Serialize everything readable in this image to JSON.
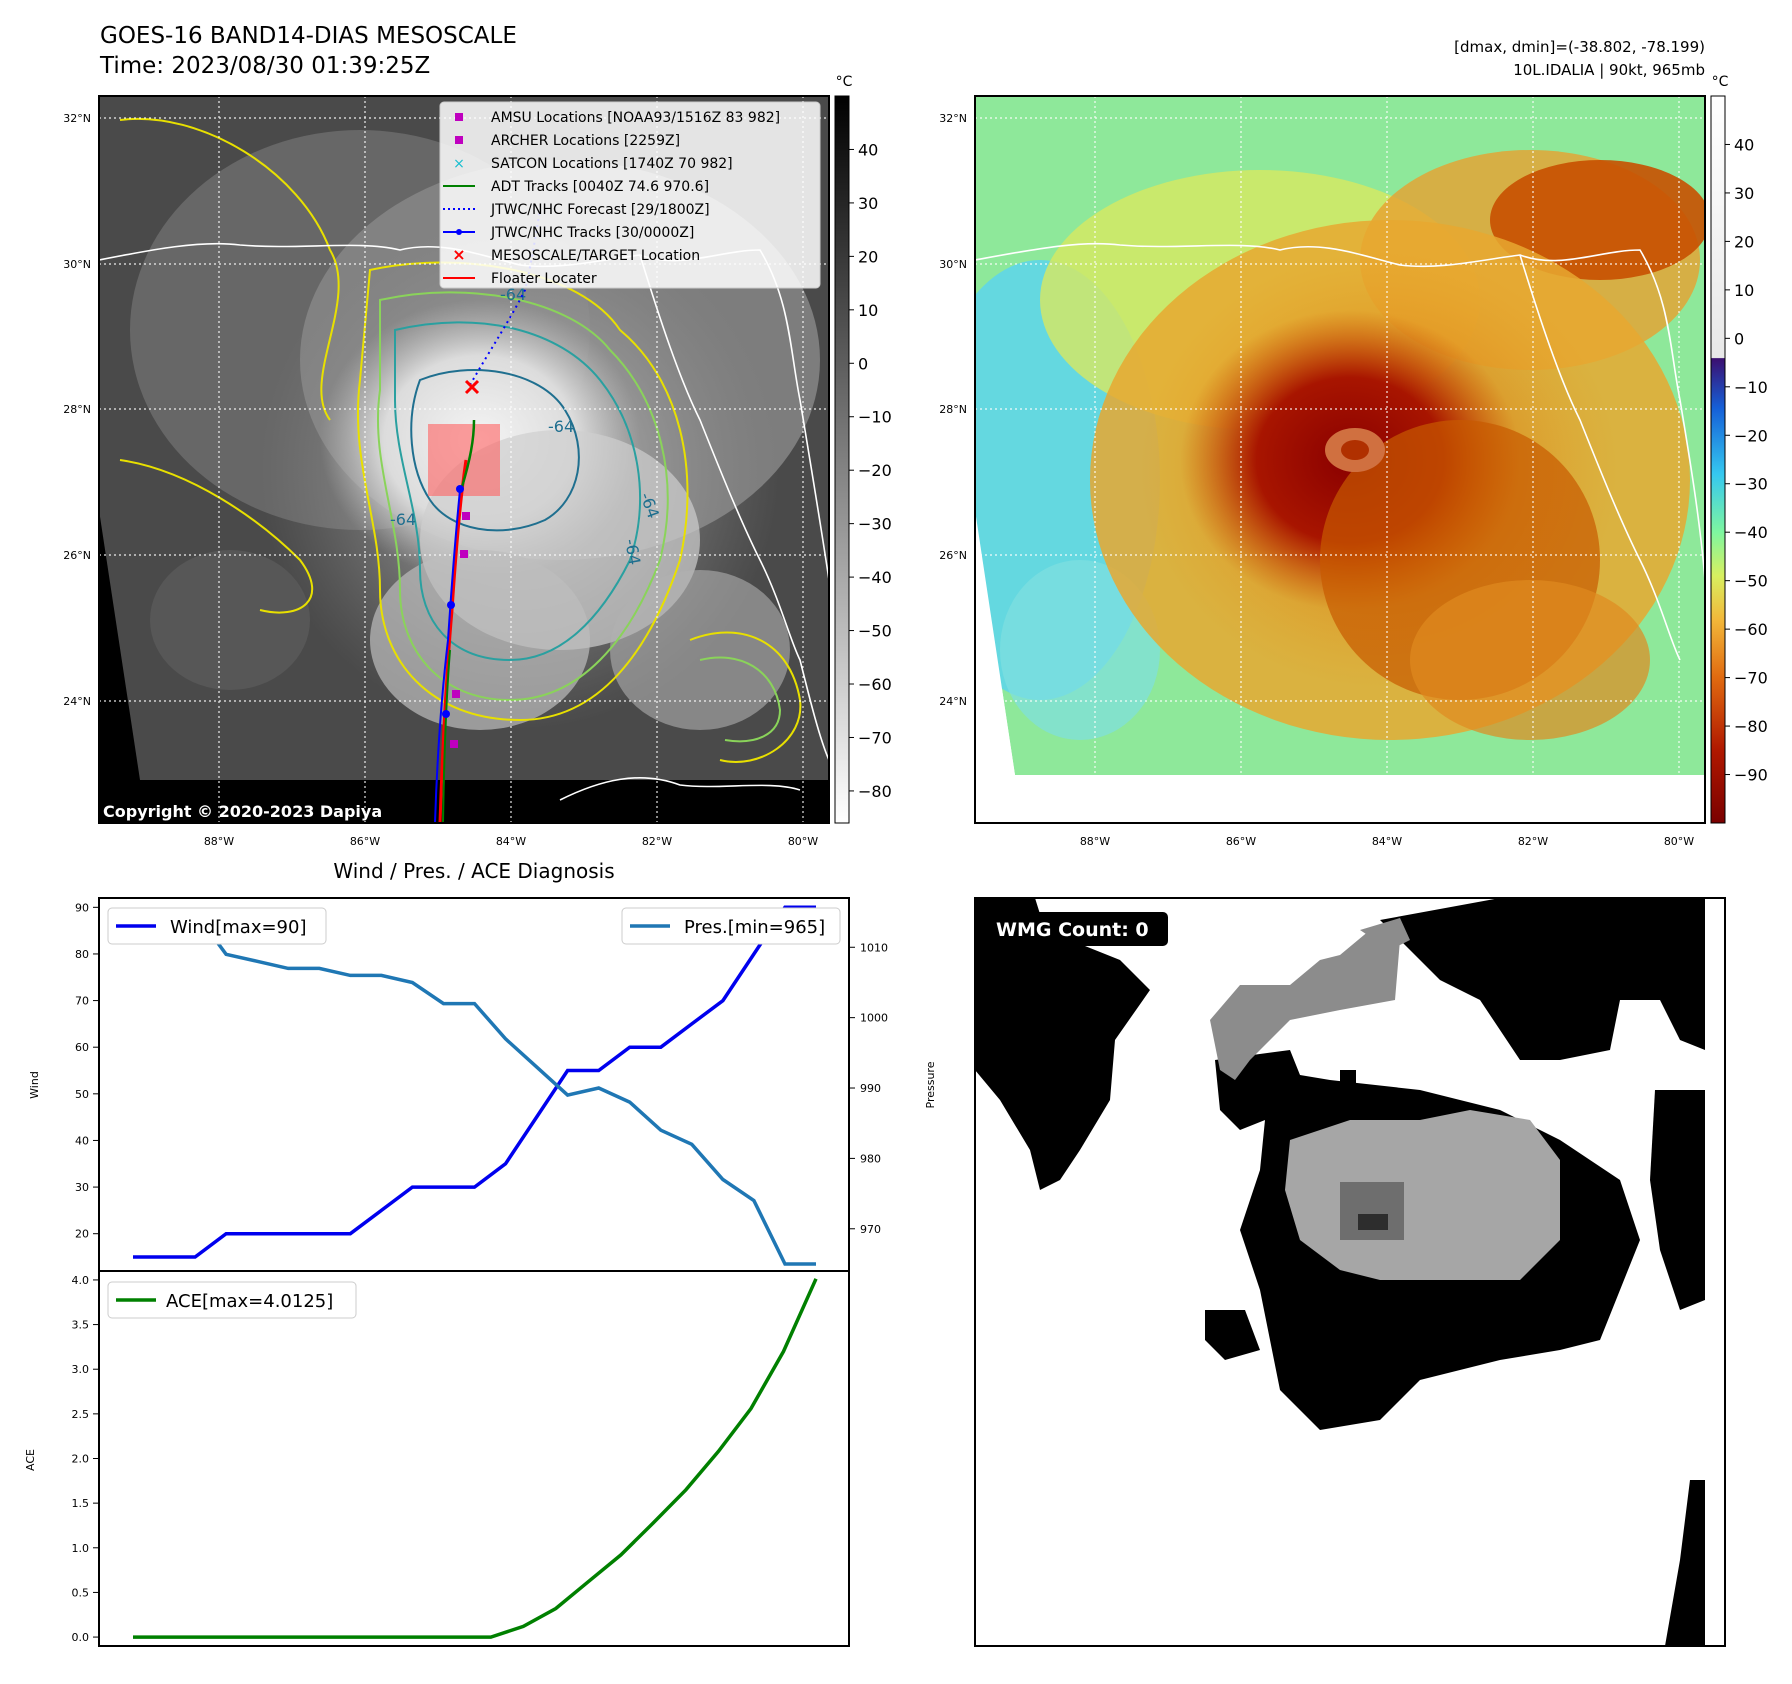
{
  "header": {
    "title": "GOES-16 BAND14-DIAS MESOSCALE",
    "time": "Time: 2023/08/30 01:39:25Z",
    "dmax_dmin": "[dmax, dmin]=(-38.802, -78.199)",
    "storm": "10L.IDALIA | 90kt, 965mb"
  },
  "copyright": "Copyright © 2020-2023 Dapiya",
  "colorbar_unit": "°C",
  "map": {
    "lat_ticks": [
      "32°N",
      "30°N",
      "28°N",
      "26°N",
      "24°N"
    ],
    "lon_ticks": [
      "88°W",
      "86°W",
      "84°W",
      "82°W",
      "80°W"
    ],
    "contour_labels": [
      "-64",
      "-64",
      "-64",
      "-64",
      "-64"
    ]
  },
  "colorbar_left": {
    "ticks": [
      "40",
      "30",
      "20",
      "10",
      "0",
      "−10",
      "−20",
      "−30",
      "−40",
      "−50",
      "−60",
      "−70",
      "−80"
    ]
  },
  "colorbar_right": {
    "ticks": [
      "40",
      "30",
      "20",
      "10",
      "0",
      "−10",
      "−20",
      "−30",
      "−40",
      "−50",
      "−60",
      "−70",
      "−80",
      "−90"
    ]
  },
  "legend": {
    "items": [
      {
        "label": "AMSU Locations [NOAA93/1516Z 83 982]",
        "color": "#bf00bf"
      },
      {
        "label": "ARCHER Locations [2259Z]",
        "color": "#bf00bf"
      },
      {
        "label": "SATCON Locations [1740Z 70 982]",
        "color": "#17becf"
      },
      {
        "label": "ADT Tracks [0040Z 74.6 970.6]",
        "color": "#008000"
      },
      {
        "label": "JTWC/NHC Forecast [29/1800Z]",
        "color": "#0000ff"
      },
      {
        "label": "JTWC/NHC Tracks [30/0000Z]",
        "color": "#0000ff"
      },
      {
        "label": "MESOSCALE/TARGET Location",
        "color": "#ff0000"
      },
      {
        "label": "Floater Locater",
        "color": "#ff0000"
      }
    ]
  },
  "colors": {
    "wind": "#0000ee",
    "pressure": "#1f77b4",
    "ace": "#008000"
  },
  "wmg_label": "WMG Count: 0",
  "chart_data": [
    {
      "type": "line",
      "title": "Wind / Pres. / ACE Diagnosis",
      "ylabel": "Wind",
      "ylabel_right": "Pressure",
      "ylim": [
        12,
        92
      ],
      "ylim_right": [
        964,
        1017
      ],
      "y_ticks": [
        20,
        30,
        40,
        50,
        60,
        70,
        80,
        90
      ],
      "y_ticks_right": [
        970,
        980,
        990,
        1000,
        1010
      ],
      "x": [
        0,
        1,
        2,
        3,
        4,
        5,
        6,
        7,
        8,
        9,
        10,
        11,
        12,
        13,
        14,
        15,
        16,
        17,
        18,
        19,
        20,
        21,
        22
      ],
      "series": [
        {
          "name": "Wind[max=90]",
          "axis": "left",
          "values": [
            15,
            15,
            15,
            20,
            20,
            20,
            20,
            20,
            25,
            30,
            30,
            30,
            35,
            45,
            55,
            55,
            60,
            60,
            65,
            70,
            80,
            90,
            90
          ]
        },
        {
          "name": "Pres.[min=965]",
          "axis": "right",
          "values": [
            1015,
            1015,
            1015,
            1009,
            1008,
            1007,
            1007,
            1006,
            1006,
            1005,
            1002,
            1002,
            997,
            993,
            989,
            990,
            988,
            984,
            982,
            977,
            974,
            965,
            965
          ]
        }
      ]
    },
    {
      "type": "line",
      "ylabel": "ACE",
      "ylim": [
        -0.1,
        4.1
      ],
      "y_ticks": [
        0.0,
        0.5,
        1.0,
        1.5,
        2.0,
        2.5,
        3.0,
        3.5,
        4.0
      ],
      "y_tick_labels": [
        "0.0",
        "0.5",
        "1.0",
        "1.5",
        "2.0",
        "2.5",
        "3.0",
        "3.5",
        "4.0"
      ],
      "x": [
        0,
        1,
        2,
        3,
        4,
        5,
        6,
        7,
        8,
        9,
        10,
        11,
        12,
        13,
        14,
        15,
        16,
        17,
        18,
        19,
        20,
        21
      ],
      "series": [
        {
          "name": "ACE[max=4.0125]",
          "values": [
            0,
            0,
            0,
            0,
            0,
            0,
            0,
            0,
            0,
            0,
            0,
            0,
            0.12,
            0.32,
            0.62,
            0.92,
            1.28,
            1.65,
            2.08,
            2.56,
            3.2,
            4.0125
          ]
        }
      ]
    }
  ]
}
